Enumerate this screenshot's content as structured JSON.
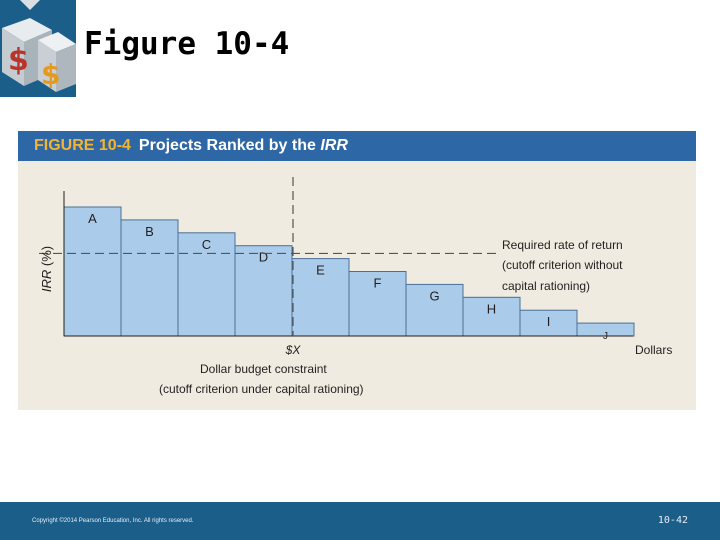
{
  "slide": {
    "title": "Figure 10-4",
    "copyright": "Copyright ©2014 Pearson Education, Inc. All rights reserved.",
    "page_number": "10-42",
    "logo_icon": "dollar-dice-logo-icon"
  },
  "figure": {
    "number": "FIGURE 10-4",
    "title_prefix": "Projects Ranked by the ",
    "title_italic": "IRR"
  },
  "chart_data": {
    "type": "bar",
    "categories": [
      "A",
      "B",
      "C",
      "D",
      "E",
      "F",
      "G",
      "H",
      "I",
      "J"
    ],
    "values": [
      10,
      9,
      8,
      7,
      6,
      5,
      4,
      3,
      2,
      1
    ],
    "y_unit": "relative IRR level (axis unlabeled)",
    "ylabel_italic": "IRR",
    "ylabel_rest": " (%)",
    "xlabel": "Dollars",
    "cutoff_rate_level": 6.4,
    "budget_constraint_after_category": "D",
    "required_rate_label": [
      "Required rate of return",
      "(cutoff criterion without",
      "capital rationing)"
    ],
    "budget_label": [
      "$X",
      "Dollar budget constraint",
      "(cutoff criterion under capital rationing)"
    ],
    "bar_color": "#aacbe9",
    "bar_stroke": "#4a6f96",
    "grid": false
  }
}
